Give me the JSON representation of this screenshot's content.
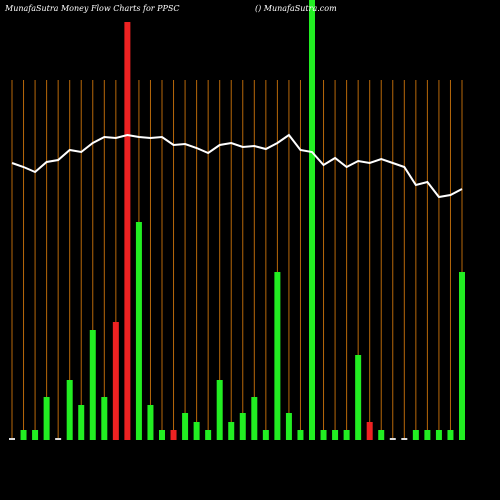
{
  "chart_data": {
    "type": "bar",
    "title": "MunafaSutra  Money Flow  Charts for PPSC",
    "subtitle": "() MunafaSutra.com",
    "categories": [
      null,
      null,
      null,
      null,
      null,
      null,
      null,
      null,
      null,
      null,
      null,
      null,
      null,
      null,
      null,
      null,
      null,
      null,
      null,
      null,
      null,
      null,
      null,
      null,
      null,
      null,
      null,
      null,
      null,
      null,
      null,
      null,
      null,
      null,
      null,
      null,
      null,
      null,
      null,
      null
    ],
    "values": [
      2,
      10,
      10,
      43,
      2,
      60,
      35,
      110,
      43,
      118,
      418,
      218,
      35,
      10,
      10,
      27,
      18,
      10,
      60,
      18,
      27,
      43,
      10,
      168,
      27,
      10,
      440,
      10,
      10,
      10,
      85,
      18,
      10,
      2,
      2,
      10,
      10,
      10,
      10,
      168
    ],
    "colors": [
      "#dddddd",
      "#22ee22",
      "#22ee22",
      "#22ee22",
      "#dddddd",
      "#22ee22",
      "#22ee22",
      "#22ee22",
      "#22ee22",
      "#ee2222",
      "#ee2222",
      "#22ee22",
      "#22ee22",
      "#22ee22",
      "#ee2222",
      "#22ee22",
      "#22ee22",
      "#22ee22",
      "#22ee22",
      "#22ee22",
      "#22ee22",
      "#22ee22",
      "#22ee22",
      "#22ee22",
      "#22ee22",
      "#22ee22",
      "#22ee22",
      "#22ee22",
      "#22ee22",
      "#22ee22",
      "#22ee22",
      "#ee2222",
      "#22ee22",
      "#dddddd",
      "#dddddd",
      "#22ee22",
      "#22ee22",
      "#22ee22",
      "#22ee22",
      "#22ee22"
    ],
    "line_values": [
      277,
      273,
      268,
      278,
      280,
      290,
      288,
      297,
      303,
      302,
      305,
      303,
      302,
      303,
      295,
      296,
      292,
      287,
      295,
      297,
      293,
      294,
      291,
      297,
      305,
      290,
      288,
      275,
      282,
      273,
      279,
      277,
      281,
      277,
      273,
      255,
      258,
      243,
      245,
      251
    ],
    "line_color": "#ffffff",
    "grid_color": "#b8680a",
    "ylim": [
      0,
      440
    ]
  }
}
